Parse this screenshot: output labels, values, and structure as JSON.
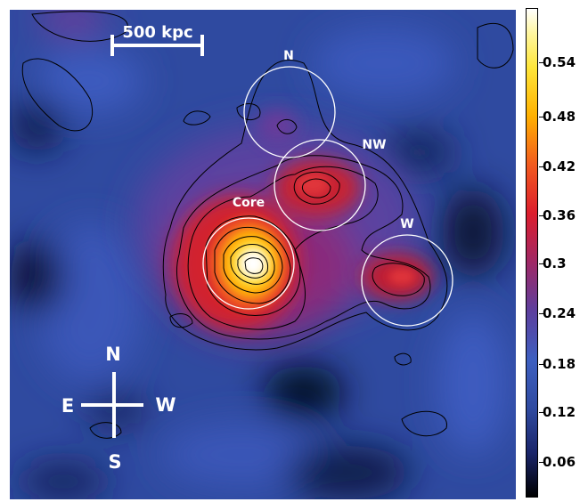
{
  "image": {
    "scale_bar_label": "500 kpc",
    "regions": [
      {
        "label": "N"
      },
      {
        "label": "NW"
      },
      {
        "label": "Core"
      },
      {
        "label": "W"
      }
    ],
    "compass": {
      "north": "N",
      "south": "S",
      "east": "E",
      "west": "W"
    }
  },
  "colorbar": {
    "ticks": [
      "0.54",
      "0.48",
      "0.42",
      "0.36",
      "0.3",
      "0.24",
      "0.18",
      "0.12",
      "0.06"
    ],
    "colormap": [
      "#000000",
      "#1a256a",
      "#3d5fc0",
      "#5c3f9e",
      "#dc1d2d",
      "#f25a1f",
      "#ffb000",
      "#ffe63a",
      "#ffffff"
    ]
  }
}
